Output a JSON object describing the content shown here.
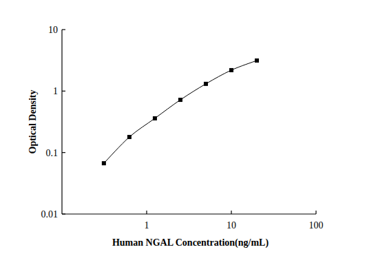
{
  "chart_data": {
    "type": "line",
    "x_label": "Human NGAL Concentration(ng/mL)",
    "y_label": "Optical Density",
    "log": true,
    "grid": false,
    "xlim": [
      0.1,
      100
    ],
    "ylim": [
      0.01,
      10
    ],
    "xticks": [
      1,
      10,
      100
    ],
    "yticks": [
      0.01,
      0.1,
      1,
      10
    ],
    "series": [
      {
        "color": "#000000",
        "marker": "square",
        "line_style": "solid",
        "x": [
          0.3125,
          0.625,
          1.25,
          2.5,
          5,
          10,
          20
        ],
        "values": [
          0.067,
          0.179,
          0.36,
          0.72,
          1.31,
          2.19,
          3.14
        ]
      }
    ]
  }
}
